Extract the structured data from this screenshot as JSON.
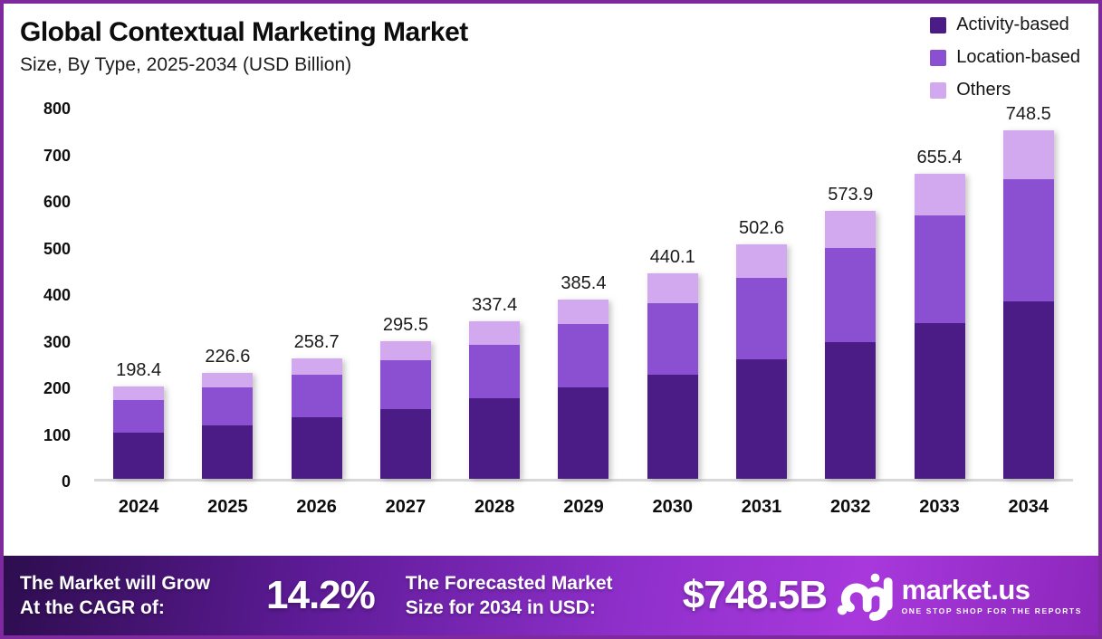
{
  "title": "Global Contextual Marketing Market",
  "subtitle": "Size, By Type, 2025-2034 (USD Billion)",
  "legend": [
    {
      "label": "Activity-based",
      "color": "#4b1b86"
    },
    {
      "label": "Location-based",
      "color": "#8b4fd1"
    },
    {
      "label": "Others",
      "color": "#d2a9ef"
    }
  ],
  "colors": {
    "activity_based": "#4b1b86",
    "location_based": "#8b4fd1",
    "others": "#d2a9ef",
    "frame_border": "#7e2a9e",
    "axis_line": "#d8d8d8",
    "banner_bright": "#a838dc",
    "banner_dark": "#2d0d4e"
  },
  "chart_data": {
    "type": "bar",
    "stacked": true,
    "title": "Global Contextual Marketing Market",
    "subtitle": "Size, By Type, 2025-2034 (USD Billion)",
    "unit": "USD Billion",
    "categories": [
      "2024",
      "2025",
      "2026",
      "2027",
      "2028",
      "2029",
      "2030",
      "2031",
      "2032",
      "2033",
      "2034"
    ],
    "series": [
      {
        "name": "Activity-based",
        "color": "#4b1b86",
        "values": [
          100.0,
          114.3,
          132.4,
          148.8,
          172.4,
          196.4,
          224.3,
          255.4,
          292.3,
          334.6,
          381.5
        ]
      },
      {
        "name": "Location-based",
        "color": "#8b4fd1",
        "values": [
          69.3,
          81.0,
          90.1,
          105.1,
          115.5,
          136.6,
          153.4,
          175.9,
          202.4,
          230.0,
          261.5
        ]
      },
      {
        "name": "Others",
        "color": "#d2a9ef",
        "values": [
          29.1,
          31.3,
          36.2,
          41.6,
          49.5,
          52.4,
          62.4,
          71.3,
          79.2,
          90.8,
          105.5
        ]
      }
    ],
    "totals": [
      198.4,
      226.6,
      258.7,
      295.5,
      337.4,
      385.4,
      440.1,
      502.6,
      573.9,
      655.4,
      748.5
    ],
    "ylim": [
      0,
      800
    ],
    "yticks": [
      0,
      100,
      200,
      300,
      400,
      500,
      600,
      700,
      800
    ],
    "grid": false,
    "legend_position": "top-right"
  },
  "footer": {
    "cagr_line1": "The Market will Grow",
    "cagr_line2": "At the CAGR of:",
    "cagr_value": "14.2%",
    "forecast_line1": "The Forecasted Market",
    "forecast_line2": "Size for 2034 in USD:",
    "forecast_value": "$748.5B",
    "brand": "market.us",
    "tagline": "ONE STOP SHOP FOR THE REPORTS"
  }
}
